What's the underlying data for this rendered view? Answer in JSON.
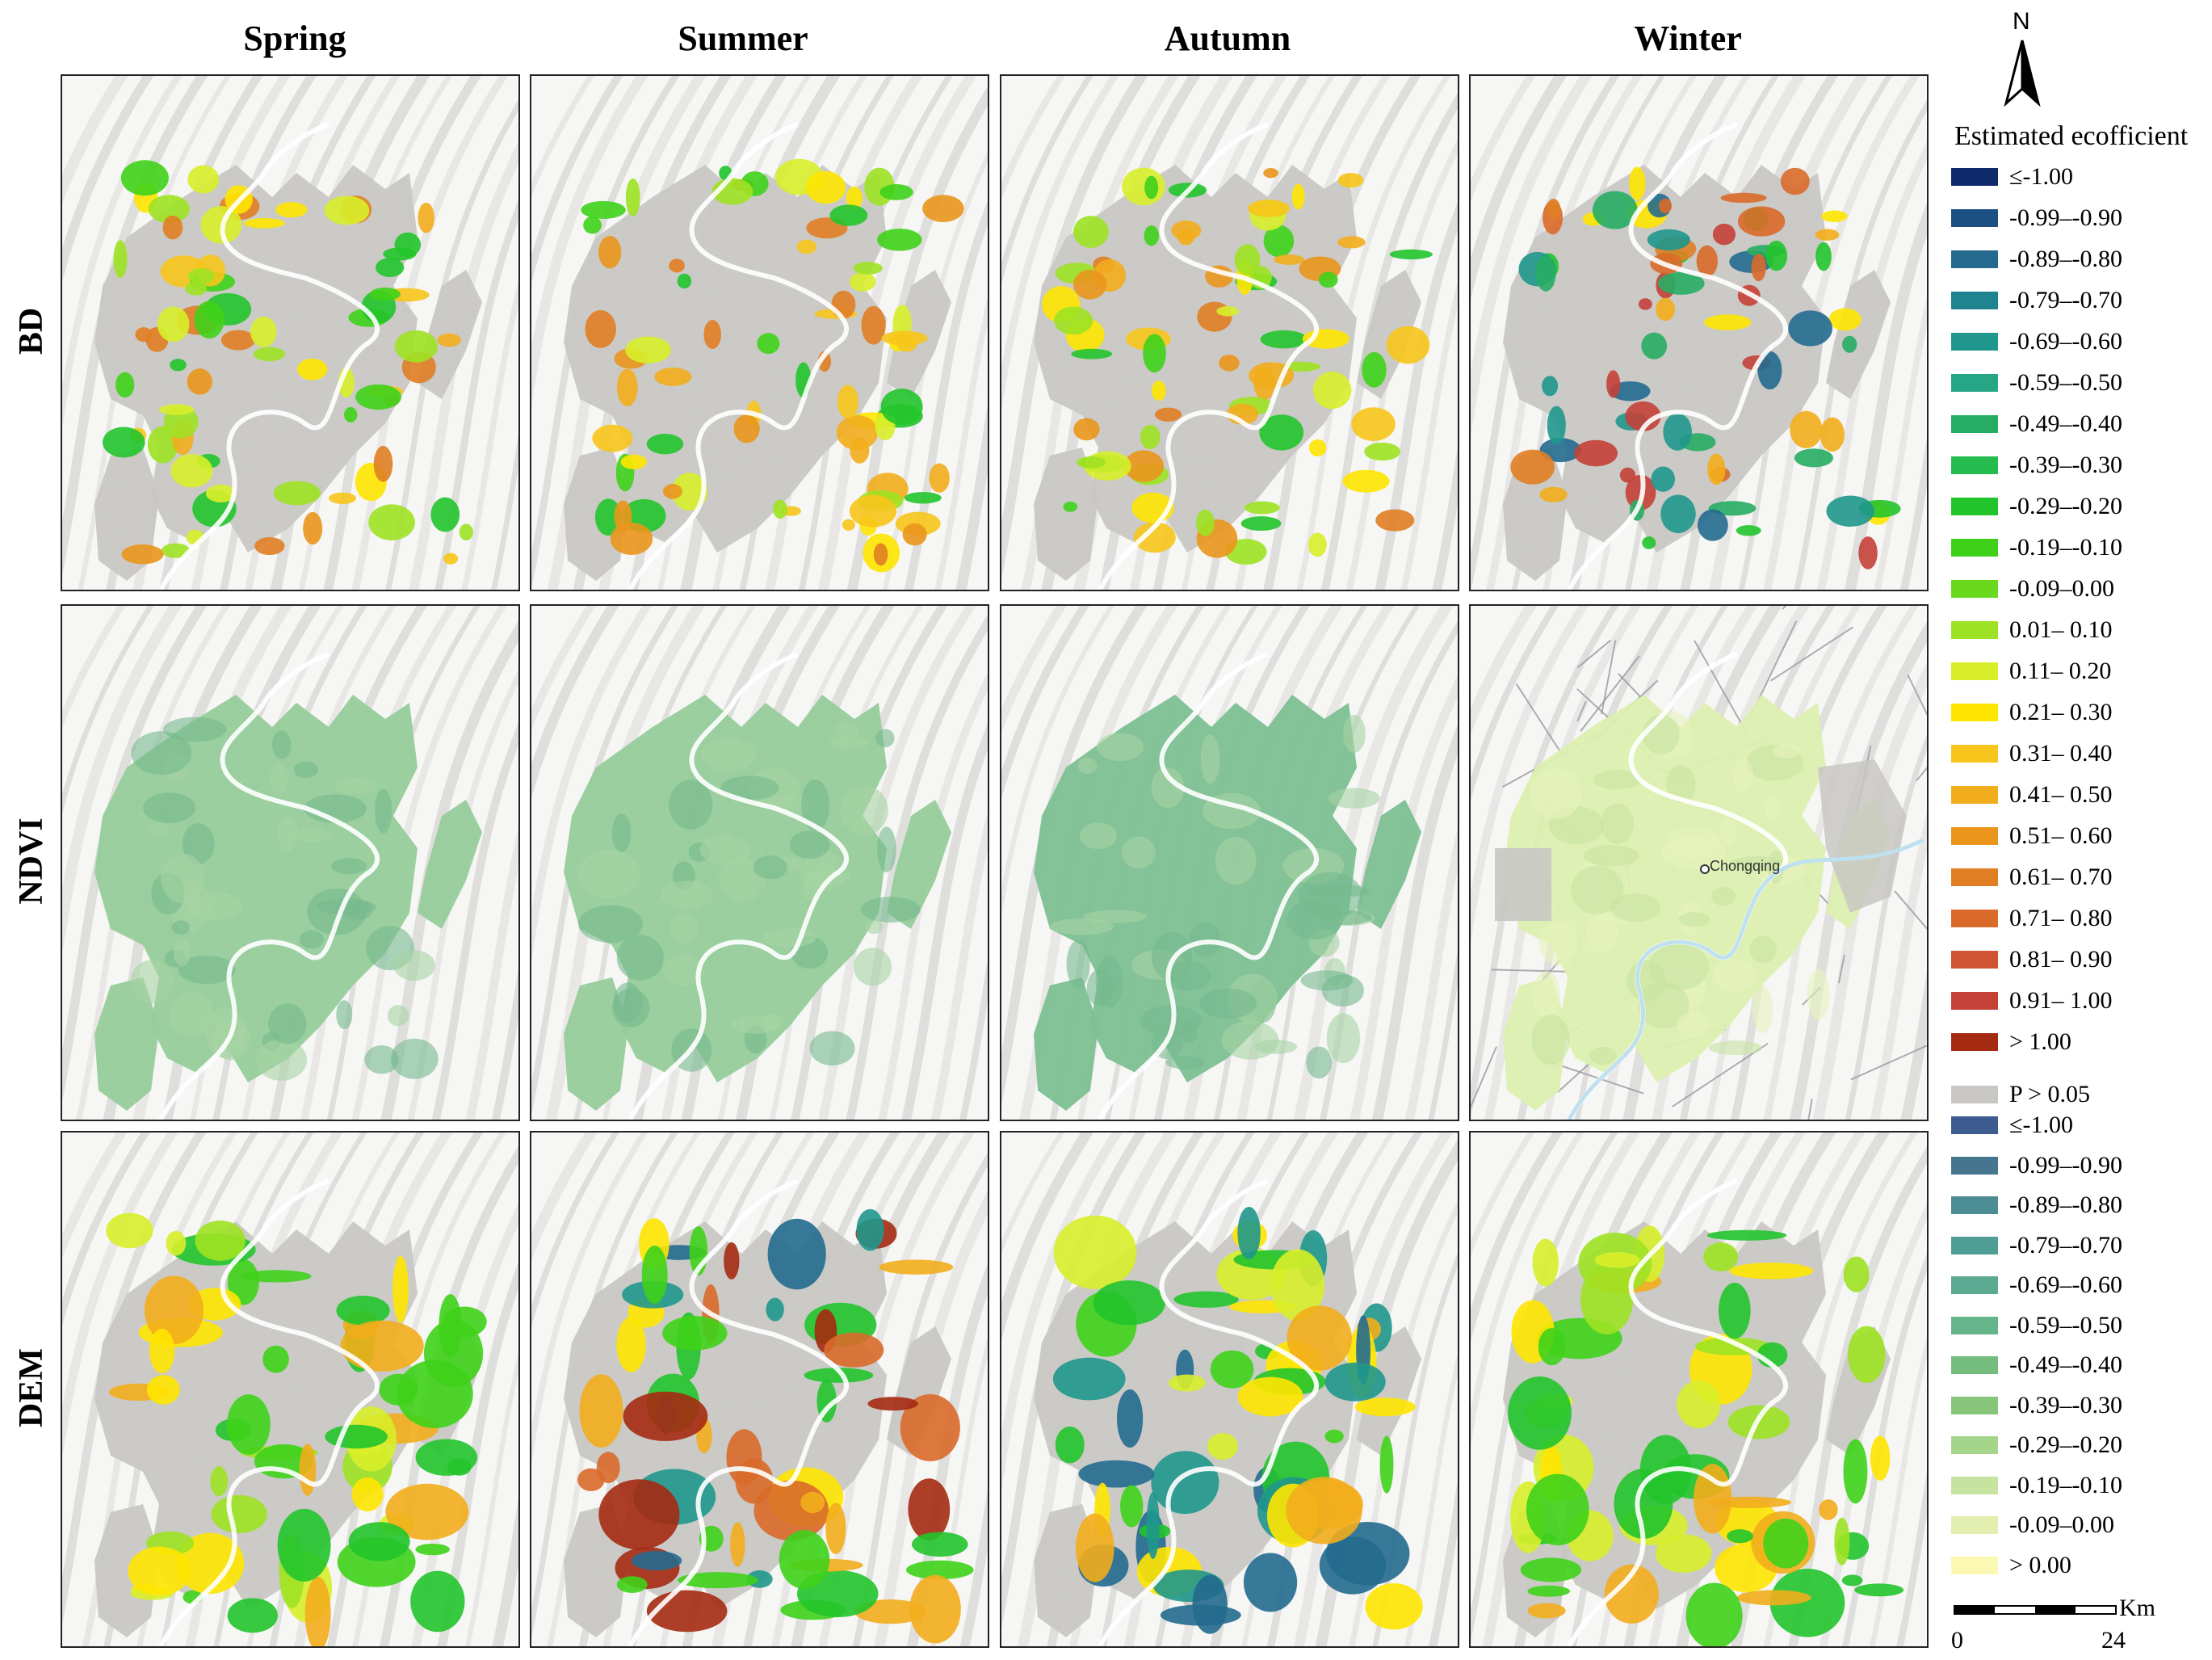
{
  "seasons": [
    "Spring",
    "Summer",
    "Autumn",
    "Winter"
  ],
  "variables": [
    "BD",
    "NDVI",
    "DEM"
  ],
  "map_label": "Chongqing",
  "north_label": "N",
  "legend": {
    "title": "Estimated ecofficient",
    "bd_classes": [
      {
        "label": "≤-1.00",
        "color": "#0f2a6b"
      },
      {
        "label": "-0.99–-0.90",
        "color": "#1c4f82"
      },
      {
        "label": "-0.89–-0.80",
        "color": "#236a8e"
      },
      {
        "label": "-0.79–-0.70",
        "color": "#1f8390"
      },
      {
        "label": "-0.69–-0.60",
        "color": "#1f978c"
      },
      {
        "label": "-0.59–-0.50",
        "color": "#26a685"
      },
      {
        "label": "-0.49–-0.40",
        "color": "#27ad63"
      },
      {
        "label": "-0.39–-0.30",
        "color": "#26bb4e"
      },
      {
        "label": "-0.29–-0.20",
        "color": "#22c42b"
      },
      {
        "label": "-0.19–-0.10",
        "color": "#3fd11a"
      },
      {
        "label": "-0.09–0.00",
        "color": "#6ad81c"
      },
      {
        "label": "0.01– 0.10",
        "color": "#9ee224"
      },
      {
        "label": "0.11– 0.20",
        "color": "#d8ee2a"
      },
      {
        "label": "0.21– 0.30",
        "color": "#ffe600"
      },
      {
        "label": "0.31– 0.40",
        "color": "#f7c51b"
      },
      {
        "label": "0.41– 0.50",
        "color": "#f2ad1c"
      },
      {
        "label": "0.51– 0.60",
        "color": "#ea961c"
      },
      {
        "label": "0.61– 0.70",
        "color": "#e07e24"
      },
      {
        "label": "0.71– 0.80",
        "color": "#d96a2a"
      },
      {
        "label": "0.81– 0.90",
        "color": "#cf5532"
      },
      {
        "label": "0.91– 1.00",
        "color": "#c44137"
      },
      {
        "label": "> 1.00",
        "color": "#a52a12"
      }
    ],
    "p_label": "P > 0.05",
    "p_color": "#c8c7c3",
    "dem_classes": [
      {
        "label": "≤-1.00",
        "color": "#3d5b8e"
      },
      {
        "label": "-0.99–-0.90",
        "color": "#467590"
      },
      {
        "label": "-0.89–-0.80",
        "color": "#4c8c94"
      },
      {
        "label": "-0.79–-0.70",
        "color": "#4f9e96"
      },
      {
        "label": "-0.69–-0.60",
        "color": "#5aa991"
      },
      {
        "label": "-0.59–-0.50",
        "color": "#66b48a"
      },
      {
        "label": "-0.49–-0.40",
        "color": "#74bd7f"
      },
      {
        "label": "-0.39–-0.30",
        "color": "#86c57a"
      },
      {
        "label": "-0.29–-0.20",
        "color": "#a4d58b"
      },
      {
        "label": "-0.19–-0.10",
        "color": "#c6e3a0"
      },
      {
        "label": "-0.09–0.00",
        "color": "#e2efb0"
      },
      {
        "label": "> 0.00",
        "color": "#fbf8b4"
      }
    ]
  },
  "scale": {
    "unit": "Km",
    "start": "0",
    "end": "24"
  }
}
